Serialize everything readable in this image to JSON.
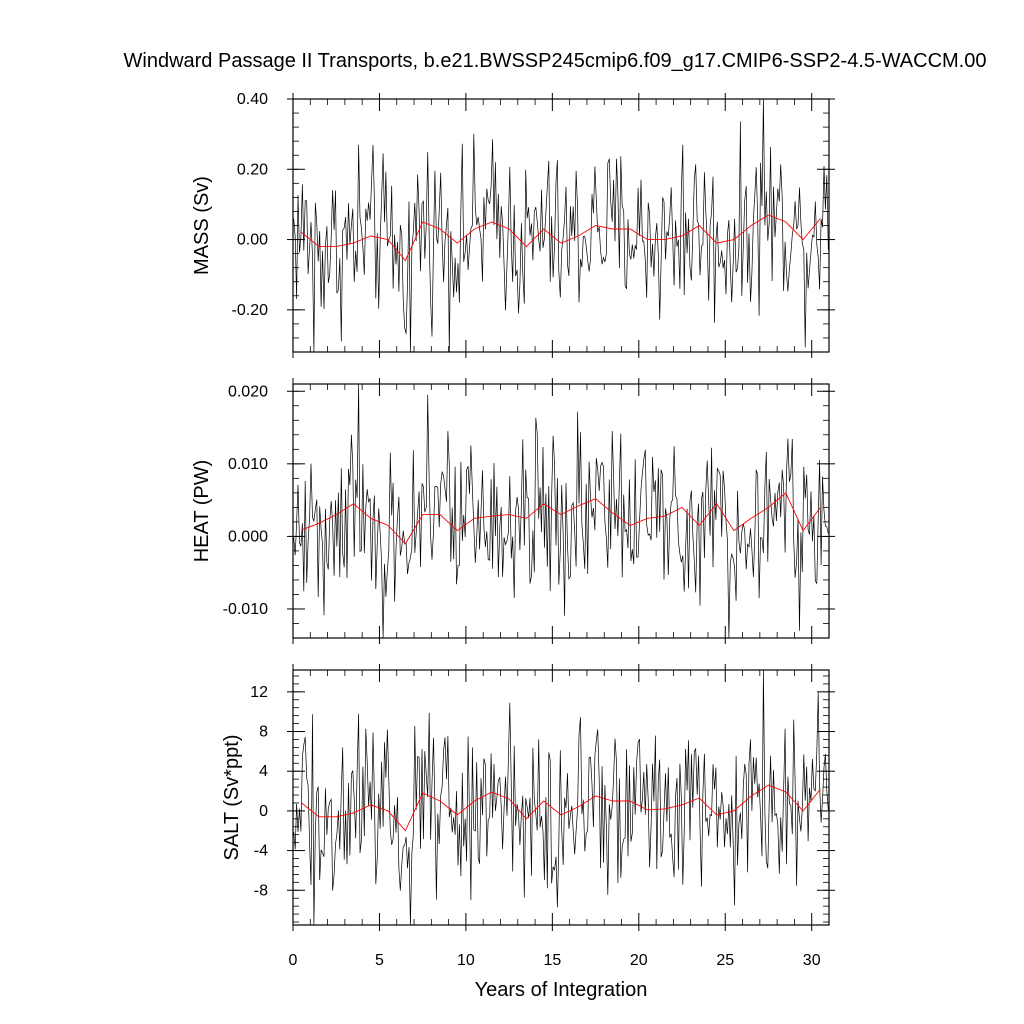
{
  "title": "Windward Passage II Transports, b.e21.BWSSP245cmip6.f09_g17.CMIP6-SSP2-4.5-WACCM.00",
  "xlabel": "Years of Integration",
  "chart_data": {
    "type": "line",
    "title": "Windward Passage II Transports, b.e21.BWSSP245cmip6.f09_g17.CMIP6-SSP2-4.5-WACCM.00",
    "xlabel": "Years of Integration",
    "xlim": [
      0,
      31
    ],
    "xticks": [
      0,
      5,
      10,
      15,
      20,
      25,
      30
    ],
    "xtick_labels": [
      "0",
      "5",
      "10",
      "15",
      "20",
      "25",
      "30"
    ],
    "grid": false,
    "panels": [
      {
        "ylabel": "MASS (Sv)",
        "ylim": [
          -0.32,
          0.4
        ],
        "yticks": [
          -0.2,
          0.0,
          0.2,
          0.4
        ],
        "ytick_labels": [
          "-0.20",
          "0.00",
          "0.20",
          "0.40"
        ],
        "annual_mean": {
          "x": [
            0.5,
            1.5,
            2.5,
            3.5,
            4.5,
            5.5,
            6.5,
            7.5,
            8.5,
            9.5,
            10.5,
            11.5,
            12.5,
            13.5,
            14.5,
            15.5,
            16.5,
            17.5,
            18.5,
            19.5,
            20.5,
            21.5,
            22.5,
            23.5,
            24.5,
            25.5,
            26.5,
            27.5,
            28.5,
            29.5,
            30.5
          ],
          "y": [
            0.02,
            -0.02,
            -0.02,
            -0.01,
            0.01,
            0.0,
            -0.06,
            0.05,
            0.03,
            -0.01,
            0.03,
            0.05,
            0.03,
            -0.02,
            0.03,
            -0.01,
            0.01,
            0.04,
            0.03,
            0.03,
            0.0,
            0.0,
            0.01,
            0.04,
            -0.01,
            0.0,
            0.04,
            0.07,
            0.05,
            0.0,
            0.06
          ]
        },
        "monthly_extremes": [
          {
            "x": 1.2,
            "y": -0.32
          },
          {
            "x": 6.8,
            "y": -0.32
          },
          {
            "x": 3.8,
            "y": 0.27
          },
          {
            "x": 27.2,
            "y": 0.4
          },
          {
            "x": 22.5,
            "y": 0.27
          }
        ]
      },
      {
        "ylabel": "HEAT (PW)",
        "ylim": [
          -0.014,
          0.021
        ],
        "yticks": [
          -0.01,
          0.0,
          0.01,
          0.02
        ],
        "ytick_labels": [
          "-0.010",
          "0.000",
          "0.010",
          "0.020"
        ],
        "annual_mean": {
          "x": [
            0.5,
            1.5,
            2.5,
            3.5,
            4.5,
            5.5,
            6.5,
            7.5,
            8.5,
            9.5,
            10.5,
            11.5,
            12.5,
            13.5,
            14.5,
            15.5,
            16.5,
            17.5,
            18.5,
            19.5,
            20.5,
            21.5,
            22.5,
            23.5,
            24.5,
            25.5,
            26.5,
            27.5,
            28.5,
            29.5,
            30.5
          ],
          "y": [
            0.0009,
            0.0018,
            0.003,
            0.0045,
            0.0025,
            0.0015,
            -0.001,
            0.003,
            0.003,
            0.0008,
            0.0025,
            0.0028,
            0.003,
            0.0025,
            0.0045,
            0.003,
            0.0042,
            0.0052,
            0.0032,
            0.0015,
            0.0025,
            0.0028,
            0.004,
            0.0015,
            0.0045,
            0.0008,
            0.0025,
            0.004,
            0.006,
            0.0008,
            0.004
          ]
        },
        "monthly_extremes": [
          {
            "x": 3.8,
            "y": 0.021
          },
          {
            "x": 5.2,
            "y": -0.014
          },
          {
            "x": 7.8,
            "y": 0.0195
          },
          {
            "x": 25.2,
            "y": -0.014
          },
          {
            "x": 29.3,
            "y": -0.013
          }
        ]
      },
      {
        "ylabel": "SALT (Sv*ppt)",
        "ylim": [
          -11.5,
          14.2
        ],
        "yticks": [
          -8,
          -4,
          0,
          4,
          8,
          12
        ],
        "ytick_labels": [
          "-8",
          "-4",
          "0",
          "4",
          "8",
          "12"
        ],
        "annual_mean": {
          "x": [
            0.5,
            1.5,
            2.5,
            3.5,
            4.5,
            5.5,
            6.5,
            7.5,
            8.5,
            9.5,
            10.5,
            11.5,
            12.5,
            13.5,
            14.5,
            15.5,
            16.5,
            17.5,
            18.5,
            19.5,
            20.5,
            21.5,
            22.5,
            23.5,
            24.5,
            25.5,
            26.5,
            27.5,
            28.5,
            29.5,
            30.5
          ],
          "y": [
            0.8,
            -0.6,
            -0.6,
            -0.2,
            0.6,
            0.0,
            -2.0,
            1.8,
            1.0,
            -0.4,
            1.0,
            1.9,
            1.2,
            -0.8,
            1.0,
            -0.4,
            0.4,
            1.5,
            1.0,
            1.0,
            0.1,
            0.2,
            0.6,
            1.3,
            -0.4,
            0.0,
            1.5,
            2.6,
            1.9,
            0.0,
            2.2
          ]
        },
        "monthly_extremes": [
          {
            "x": 1.2,
            "y": -11.5
          },
          {
            "x": 6.8,
            "y": -11.5
          },
          {
            "x": 3.8,
            "y": 9.8
          },
          {
            "x": 27.2,
            "y": 14.2
          }
        ]
      }
    ],
    "series": [
      {
        "style": "monthly",
        "color": "#000000"
      },
      {
        "style": "annual_mean",
        "color": "#ff0000"
      }
    ]
  }
}
